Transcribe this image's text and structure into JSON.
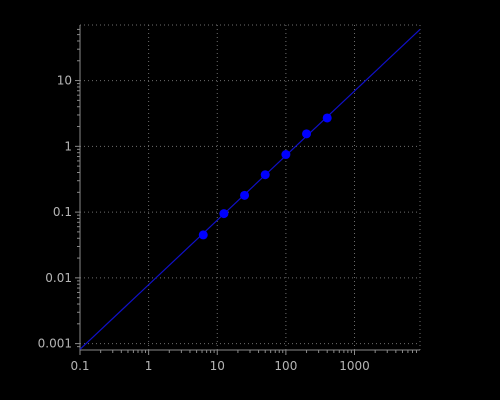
{
  "colors": {
    "background": "#000000",
    "axis": "#8a8a8a",
    "grid": "#6e6e6e",
    "tick_text": "#b4b4b4",
    "points": "#0000ff",
    "fit_line": "#1010c8"
  },
  "chart_data": {
    "type": "scatter",
    "title": "",
    "xlabel": "",
    "ylabel": "",
    "x_scale": "log",
    "y_scale": "log",
    "xlim": [
      0.1,
      9000
    ],
    "ylim": [
      0.0008,
      70
    ],
    "grid": true,
    "legend": "none",
    "x_tick_labels": [
      {
        "value": 0.1,
        "label": "0.1"
      },
      {
        "value": 1,
        "label": "1"
      },
      {
        "value": 10,
        "label": "10"
      },
      {
        "value": 100,
        "label": "100"
      },
      {
        "value": 1000,
        "label": "1000"
      }
    ],
    "y_tick_labels": [
      {
        "value": 0.001,
        "label": "0.001"
      },
      {
        "value": 0.01,
        "label": "0.01"
      },
      {
        "value": 0.1,
        "label": "0.1"
      },
      {
        "value": 1,
        "label": "1"
      },
      {
        "value": 10,
        "label": "10"
      }
    ],
    "series": [
      {
        "type": "scatter",
        "x": [
          6.25,
          12.5,
          25,
          50,
          100,
          200,
          400
        ],
        "y": [
          0.045,
          0.095,
          0.18,
          0.37,
          0.75,
          1.55,
          2.7
        ]
      },
      {
        "type": "line",
        "x": [
          0.1,
          9000
        ],
        "y": [
          0.00082,
          60
        ]
      }
    ]
  }
}
